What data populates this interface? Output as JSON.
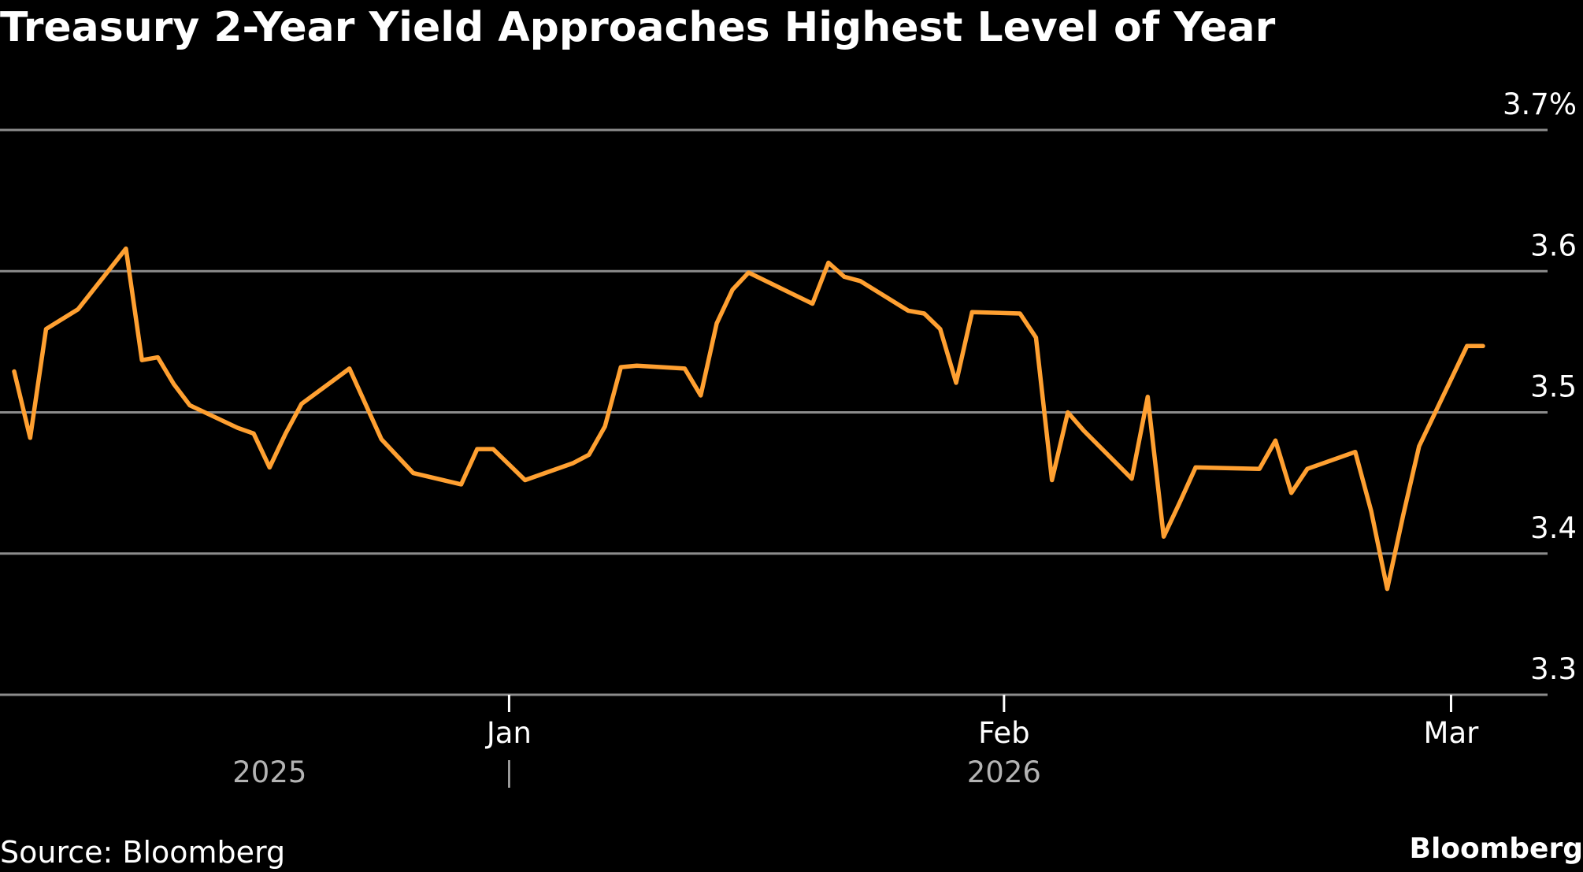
{
  "header": {
    "title": "Treasury 2-Year Yield Approaches Highest Level of Year"
  },
  "footer": {
    "source": "Source: Bloomberg",
    "brand": "Bloomberg"
  },
  "colors": {
    "background": "#000000",
    "series": "#ffa031",
    "gridline": "#8c8c8c",
    "text": "#ffffff",
    "year_label": "#b3b3b3"
  },
  "chart_data": {
    "type": "line",
    "title": "Treasury 2-Year Yield Approaches Highest Level of Year",
    "xlabel": "",
    "ylabel": "",
    "ylim": [
      3.3,
      3.7
    ],
    "y_ticks": [
      {
        "value": 3.3,
        "label": "3.3"
      },
      {
        "value": 3.4,
        "label": "3.4"
      },
      {
        "value": 3.5,
        "label": "3.5"
      },
      {
        "value": 3.6,
        "label": "3.6"
      },
      {
        "value": 3.7,
        "label": "3.7%"
      }
    ],
    "x_ticks": [
      {
        "date": "2026-01-01",
        "label": "Jan"
      },
      {
        "date": "2026-02-01",
        "label": "Feb"
      },
      {
        "date": "2026-03-01",
        "label": "Mar"
      }
    ],
    "year_labels": [
      {
        "label": "2025",
        "date": "2025-12-17"
      },
      {
        "label": "2026",
        "date": "2026-02-01"
      }
    ],
    "grid": true,
    "y_axis_position": "right",
    "series": [
      {
        "dates": [
          "2025-12-01",
          "2025-12-02",
          "2025-12-03",
          "2025-12-05",
          "2025-12-08",
          "2025-12-09",
          "2025-12-10",
          "2025-12-11",
          "2025-12-12",
          "2025-12-15",
          "2025-12-16",
          "2025-12-17",
          "2025-12-18",
          "2025-12-19",
          "2025-12-22",
          "2025-12-23",
          "2025-12-24",
          "2025-12-26",
          "2025-12-29",
          "2025-12-30",
          "2025-12-31",
          "2026-01-02",
          "2026-01-05",
          "2026-01-06",
          "2026-01-07",
          "2026-01-08",
          "2026-01-09",
          "2026-01-12",
          "2026-01-13",
          "2026-01-14",
          "2026-01-15",
          "2026-01-16",
          "2026-01-20",
          "2026-01-21",
          "2026-01-22",
          "2026-01-23",
          "2026-01-26",
          "2026-01-27",
          "2026-01-28",
          "2026-01-29",
          "2026-01-30",
          "2026-02-02",
          "2026-02-03",
          "2026-02-04",
          "2026-02-05",
          "2026-02-06",
          "2026-02-09",
          "2026-02-10",
          "2026-02-11",
          "2026-02-12",
          "2026-02-13",
          "2026-02-17",
          "2026-02-18",
          "2026-02-19",
          "2026-02-20",
          "2026-02-23",
          "2026-02-24",
          "2026-02-25",
          "2026-02-26",
          "2026-02-27",
          "2026-03-02",
          "2026-03-03"
        ],
        "values": [
          3.529,
          3.482,
          3.559,
          3.573,
          3.616,
          3.537,
          3.539,
          3.52,
          3.505,
          3.489,
          3.485,
          3.461,
          3.485,
          3.506,
          3.531,
          3.506,
          3.481,
          3.457,
          3.449,
          3.474,
          3.474,
          3.452,
          3.464,
          3.47,
          3.49,
          3.532,
          3.533,
          3.531,
          3.512,
          3.563,
          3.587,
          3.599,
          3.577,
          3.606,
          3.596,
          3.593,
          3.572,
          3.57,
          3.559,
          3.521,
          3.571,
          3.57,
          3.553,
          3.452,
          3.5,
          3.487,
          3.453,
          3.511,
          3.412,
          3.436,
          3.461,
          3.46,
          3.48,
          3.443,
          3.46,
          3.472,
          3.43,
          3.375,
          3.427,
          3.476,
          3.547,
          3.547
        ]
      }
    ]
  }
}
